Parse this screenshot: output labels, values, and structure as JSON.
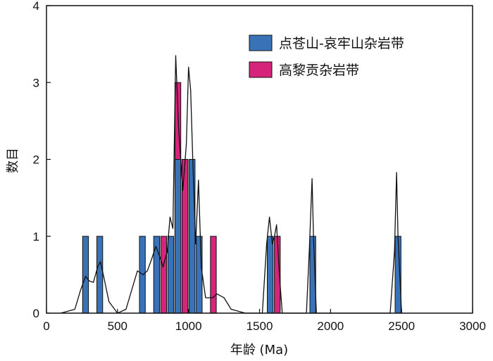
{
  "chart_data": {
    "type": "bar",
    "xlabel": "年龄 (Ma)",
    "ylabel": "数目",
    "xlim": [
      0,
      3000
    ],
    "ylim": [
      0,
      4
    ],
    "xticks": [
      0,
      500,
      1000,
      1500,
      2000,
      2500,
      3000
    ],
    "yticks": [
      0,
      1,
      2,
      3,
      4
    ],
    "bin_width": 50,
    "grid": false,
    "legend_position": "top-right",
    "series": [
      {
        "name": "点苍山-哀牢山杂岩带",
        "color": "#3a72b8",
        "bins": [
          {
            "x": 275,
            "count": 1
          },
          {
            "x": 375,
            "count": 1
          },
          {
            "x": 675,
            "count": 1
          },
          {
            "x": 775,
            "count": 1
          },
          {
            "x": 875,
            "count": 1
          },
          {
            "x": 925,
            "count": 2
          },
          {
            "x": 975,
            "count": 2
          },
          {
            "x": 1025,
            "count": 2
          },
          {
            "x": 1075,
            "count": 1
          },
          {
            "x": 1575,
            "count": 1
          },
          {
            "x": 1875,
            "count": 1
          },
          {
            "x": 2475,
            "count": 1
          }
        ]
      },
      {
        "name": "高黎贡杂岩带",
        "color": "#d6247a",
        "bins": [
          {
            "x": 825,
            "count": 1
          },
          {
            "x": 925,
            "count": 3
          },
          {
            "x": 975,
            "count": 2
          },
          {
            "x": 1175,
            "count": 1
          },
          {
            "x": 1625,
            "count": 1
          }
        ]
      }
    ],
    "probability_curve": {
      "color": "#111111",
      "points": [
        [
          100,
          0.0
        ],
        [
          200,
          0.05
        ],
        [
          240,
          0.3
        ],
        [
          275,
          0.48
        ],
        [
          300,
          0.42
        ],
        [
          330,
          0.4
        ],
        [
          360,
          0.6
        ],
        [
          380,
          0.67
        ],
        [
          400,
          0.5
        ],
        [
          440,
          0.15
        ],
        [
          500,
          0.0
        ],
        [
          560,
          0.05
        ],
        [
          600,
          0.3
        ],
        [
          640,
          0.55
        ],
        [
          680,
          0.5
        ],
        [
          710,
          0.55
        ],
        [
          740,
          0.7
        ],
        [
          770,
          0.87
        ],
        [
          800,
          0.72
        ],
        [
          820,
          0.6
        ],
        [
          850,
          0.8
        ],
        [
          870,
          1.25
        ],
        [
          890,
          1.1
        ],
        [
          910,
          3.35
        ],
        [
          930,
          2.4
        ],
        [
          960,
          1.6
        ],
        [
          985,
          2.2
        ],
        [
          1000,
          3.2
        ],
        [
          1015,
          2.9
        ],
        [
          1030,
          2.0
        ],
        [
          1050,
          0.9
        ],
        [
          1070,
          1.73
        ],
        [
          1090,
          0.6
        ],
        [
          1120,
          0.2
        ],
        [
          1170,
          0.2
        ],
        [
          1200,
          0.25
        ],
        [
          1250,
          0.2
        ],
        [
          1300,
          0.05
        ],
        [
          1400,
          0.0
        ],
        [
          1520,
          0.0
        ],
        [
          1550,
          0.9
        ],
        [
          1570,
          1.25
        ],
        [
          1590,
          0.9
        ],
        [
          1605,
          1.0
        ],
        [
          1620,
          1.15
        ],
        [
          1640,
          0.5
        ],
        [
          1660,
          0.0
        ],
        [
          1830,
          0.0
        ],
        [
          1850,
          0.8
        ],
        [
          1870,
          1.75
        ],
        [
          1880,
          1.0
        ],
        [
          1900,
          0.0
        ],
        [
          2420,
          0.0
        ],
        [
          2450,
          0.8
        ],
        [
          2465,
          1.83
        ],
        [
          2475,
          1.0
        ],
        [
          2500,
          0.0
        ]
      ]
    }
  }
}
